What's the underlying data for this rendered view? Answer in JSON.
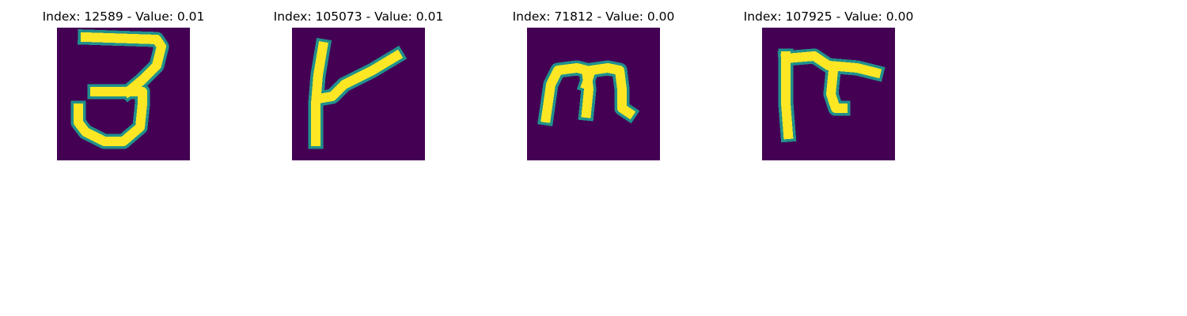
{
  "colors": {
    "background": "#440154",
    "stroke_core": "#fde725",
    "stroke_edge": "#21918c"
  },
  "panels": [
    {
      "title": "Index: 12589 - Value: 0.01",
      "glyph": "digit-3-like-character"
    },
    {
      "title": "Index: 105073 - Value: 0.01",
      "glyph": "slanted-stroke-character"
    },
    {
      "title": "Index: 71812 - Value: 0.00",
      "glyph": "m-shaped-character"
    },
    {
      "title": "Index: 107925 - Value: 0.00",
      "glyph": "hook-shaped-character"
    }
  ]
}
